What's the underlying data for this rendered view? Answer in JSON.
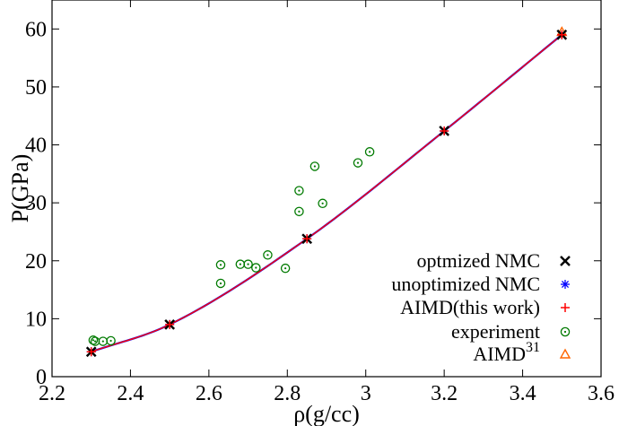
{
  "chart_data": {
    "type": "scatter",
    "xlabel": "ρ(g/cc)",
    "ylabel": "P(GPa)",
    "xlim": [
      2.2,
      3.6
    ],
    "ylim": [
      0,
      65
    ],
    "xticks": [
      2.2,
      2.4,
      2.6,
      2.8,
      3.0,
      3.2,
      3.4,
      3.6
    ],
    "xtick_labels": [
      "2.2",
      "2.4",
      "2.6",
      "2.8",
      "3",
      "3.2",
      "3.4",
      "3.6"
    ],
    "yticks": [
      0,
      10,
      20,
      30,
      40,
      50,
      60
    ],
    "ytick_labels": [
      "0",
      "10",
      "20",
      "30",
      "40",
      "50",
      "60"
    ],
    "grid": false,
    "legend_position": "bottom-right",
    "fit_curve": {
      "colors": [
        "#0000ff",
        "#ff0000"
      ],
      "x": [
        2.3,
        2.5,
        2.85,
        3.2,
        3.5
      ],
      "y": [
        4.3,
        9.0,
        23.8,
        42.4,
        59.0
      ]
    },
    "series": [
      {
        "name": "optmized NMC",
        "marker": "x",
        "color": "#000000",
        "x": [
          2.3,
          2.5,
          2.85,
          3.2,
          3.5
        ],
        "y": [
          4.3,
          9.0,
          23.8,
          42.4,
          59.0
        ]
      },
      {
        "name": "unoptimized NMC",
        "marker": "asterisk",
        "color": "#0000ff",
        "x": [
          2.3,
          2.5,
          2.85,
          3.2,
          3.5
        ],
        "y": [
          4.3,
          9.0,
          23.8,
          42.4,
          59.0
        ]
      },
      {
        "name": "AIMD(this work)",
        "marker": "plus",
        "color": "#ff0000",
        "x": [
          2.3,
          2.5,
          2.85,
          3.2,
          3.5
        ],
        "y": [
          4.3,
          9.0,
          23.8,
          42.4,
          59.0
        ]
      },
      {
        "name": "experiment",
        "marker": "circle-dot",
        "color": "#007a00",
        "x": [
          2.305,
          2.31,
          2.33,
          2.35,
          2.63,
          2.63,
          2.68,
          2.7,
          2.72,
          2.75,
          2.795,
          2.83,
          2.83,
          2.87,
          2.89,
          2.98,
          3.01
        ],
        "y": [
          6.3,
          6.1,
          6.1,
          6.2,
          19.3,
          16.1,
          19.4,
          19.4,
          18.8,
          21.0,
          18.7,
          32.1,
          28.5,
          36.3,
          29.9,
          36.9,
          38.8
        ]
      },
      {
        "name": "AIMD",
        "name_superscript": "31",
        "marker": "triangle",
        "color": "#ff6600",
        "x": [
          3.5
        ],
        "y": [
          59.5
        ]
      }
    ]
  }
}
